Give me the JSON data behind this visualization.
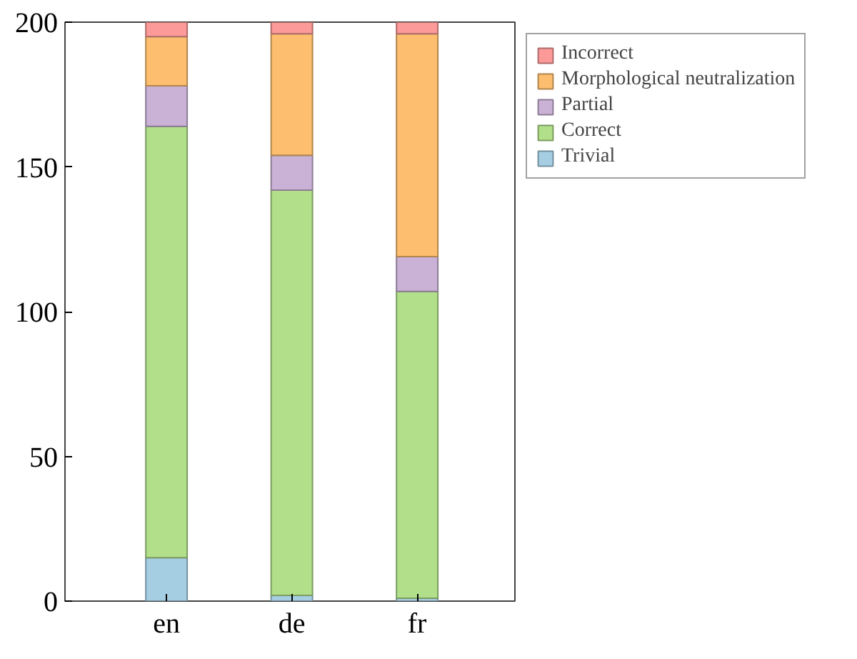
{
  "chart_data": {
    "type": "bar",
    "stacked": true,
    "categories": [
      "en",
      "de",
      "fr"
    ],
    "series": [
      {
        "name": "Trivial",
        "color": "#a6cee3",
        "values": [
          15,
          2,
          1
        ]
      },
      {
        "name": "Correct",
        "color": "#b2df8a",
        "values": [
          149,
          140,
          106
        ]
      },
      {
        "name": "Partial",
        "color": "#cab2d6",
        "values": [
          14,
          12,
          12
        ]
      },
      {
        "name": "Morphological neutralization",
        "color": "#fdbf6f",
        "values": [
          17,
          42,
          77
        ]
      },
      {
        "name": "Incorrect",
        "color": "#fb9a99",
        "values": [
          5,
          4,
          4
        ]
      }
    ],
    "ylim": [
      0,
      200
    ],
    "yticks": [
      0,
      50,
      100,
      150,
      200
    ],
    "grid": false,
    "legend": "top right"
  }
}
